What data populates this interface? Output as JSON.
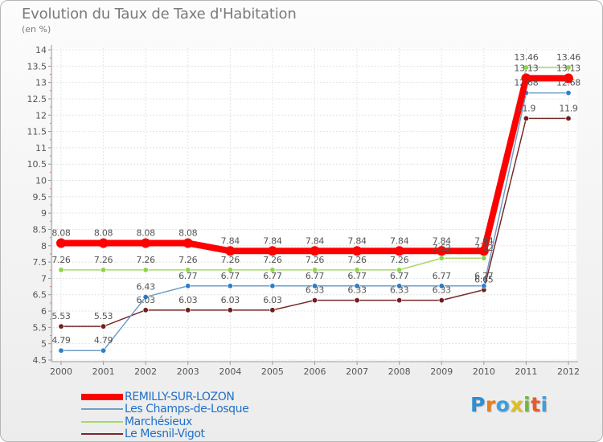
{
  "header": {
    "title": "Evolution du Taux de Taxe d'Habitation",
    "unit": "(en %)"
  },
  "logo": {
    "text": "Proxiti",
    "letters": [
      "P",
      "r",
      "o",
      "x",
      "i",
      "t",
      "i"
    ],
    "colors": [
      "#2a8fd6",
      "#e87d1e",
      "#3aa0e0",
      "#e0c020",
      "#6cba3c",
      "#e85a2a",
      "#3aa0e0"
    ]
  },
  "chart_data": {
    "type": "line",
    "title": "Evolution du Taux de Taxe d'Habitation",
    "ylabel": "(en %)",
    "xlabel": "",
    "ylim": [
      4.5,
      14
    ],
    "yticks": [
      "4.5",
      "5",
      "5.5",
      "6",
      "6.5",
      "7",
      "7.5",
      "8",
      "8.5",
      "9",
      "9.5",
      "10",
      "10.5",
      "11",
      "11.5",
      "12",
      "12.5",
      "13",
      "13.5",
      "14"
    ],
    "x": [
      "2000",
      "2001",
      "2002",
      "2003",
      "2004",
      "2005",
      "2006",
      "2007",
      "2008",
      "2009",
      "2010",
      "2011",
      "2012"
    ],
    "grid": true,
    "legend_position": "bottom-left",
    "series": [
      {
        "name": "REMILLY-SUR-LOZON",
        "color": "#ff0000",
        "width": "thick",
        "values": [
          8.08,
          8.08,
          8.08,
          8.08,
          7.84,
          7.84,
          7.84,
          7.84,
          7.84,
          7.84,
          7.84,
          13.13,
          13.13
        ],
        "labels": [
          "8.08",
          "8.08",
          "8.08",
          "8.08",
          "7.84",
          "7.84",
          "7.84",
          "7.84",
          "7.84",
          "7.84",
          "7.84",
          "13.13",
          "13.13"
        ]
      },
      {
        "name": "Les Champs-de-Losque",
        "color": "#6e9ec8",
        "marker": "#2f7fc8",
        "values": [
          4.79,
          4.79,
          6.43,
          6.77,
          6.77,
          6.77,
          6.77,
          6.77,
          6.77,
          6.77,
          6.77,
          12.68,
          12.68
        ],
        "labels": [
          "4.79",
          "4.79",
          "6.43",
          "6.77",
          "6.77",
          "6.77",
          "6.77",
          "6.77",
          "6.77",
          "6.77",
          "6.77",
          "12.68",
          "12.68"
        ]
      },
      {
        "name": "Marchésieux",
        "color": "#a6d96a",
        "marker": "#8ed44a",
        "values": [
          7.26,
          7.26,
          7.26,
          7.26,
          7.26,
          7.26,
          7.26,
          7.26,
          7.26,
          7.62,
          7.62,
          13.46,
          13.46
        ],
        "labels": [
          "7.26",
          "7.26",
          "7.26",
          "7.26",
          "7.26",
          "7.26",
          "7.26",
          "7.26",
          "7.26",
          "7.62",
          "7.62",
          "13.46",
          "13.46"
        ]
      },
      {
        "name": "Le Mesnil-Vigot",
        "color": "#7a2a2a",
        "marker": "#6e1f1f",
        "values": [
          5.53,
          5.53,
          6.03,
          6.03,
          6.03,
          6.03,
          6.33,
          6.33,
          6.33,
          6.33,
          6.65,
          11.9,
          11.9
        ],
        "labels": [
          "5.53",
          "5.53",
          "6.03",
          "6.03",
          "6.03",
          "6.03",
          "6.33",
          "6.33",
          "6.33",
          "6.33",
          "6.65",
          "11.9",
          "11.9"
        ]
      }
    ]
  }
}
